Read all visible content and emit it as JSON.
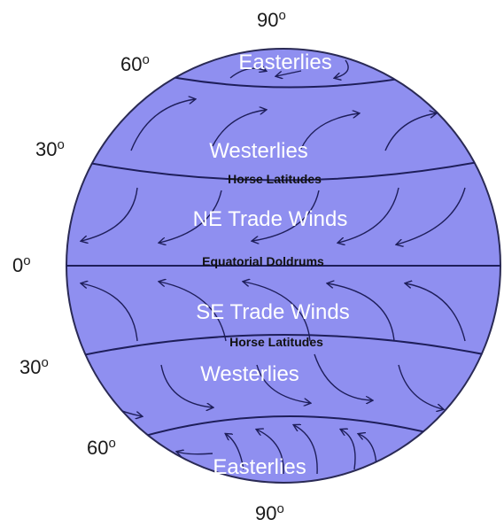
{
  "colors": {
    "globe_fill": "#8f8ff0",
    "lines": "#1e1e5a",
    "wind_text": "#ffffff",
    "band_text": "#111111"
  },
  "latitudes": {
    "top": "90",
    "north_60": "60",
    "north_30": "30",
    "equator": "0",
    "south_30": "30",
    "south_60": "60",
    "bottom": "90",
    "degree_symbol": "o"
  },
  "winds": {
    "north_polar": "Easterlies",
    "north_westerlies": "Westerlies",
    "ne_trades": "NE Trade Winds",
    "se_trades": "SE Trade Winds",
    "south_westerlies": "Westerlies",
    "south_polar": "Easterlies"
  },
  "bands": {
    "north_horse": "Horse Latitudes",
    "equator": "Equatorial Doldrums",
    "south_horse": "Horse Latitudes"
  },
  "arrow_icon": "curved-arrow-icon"
}
